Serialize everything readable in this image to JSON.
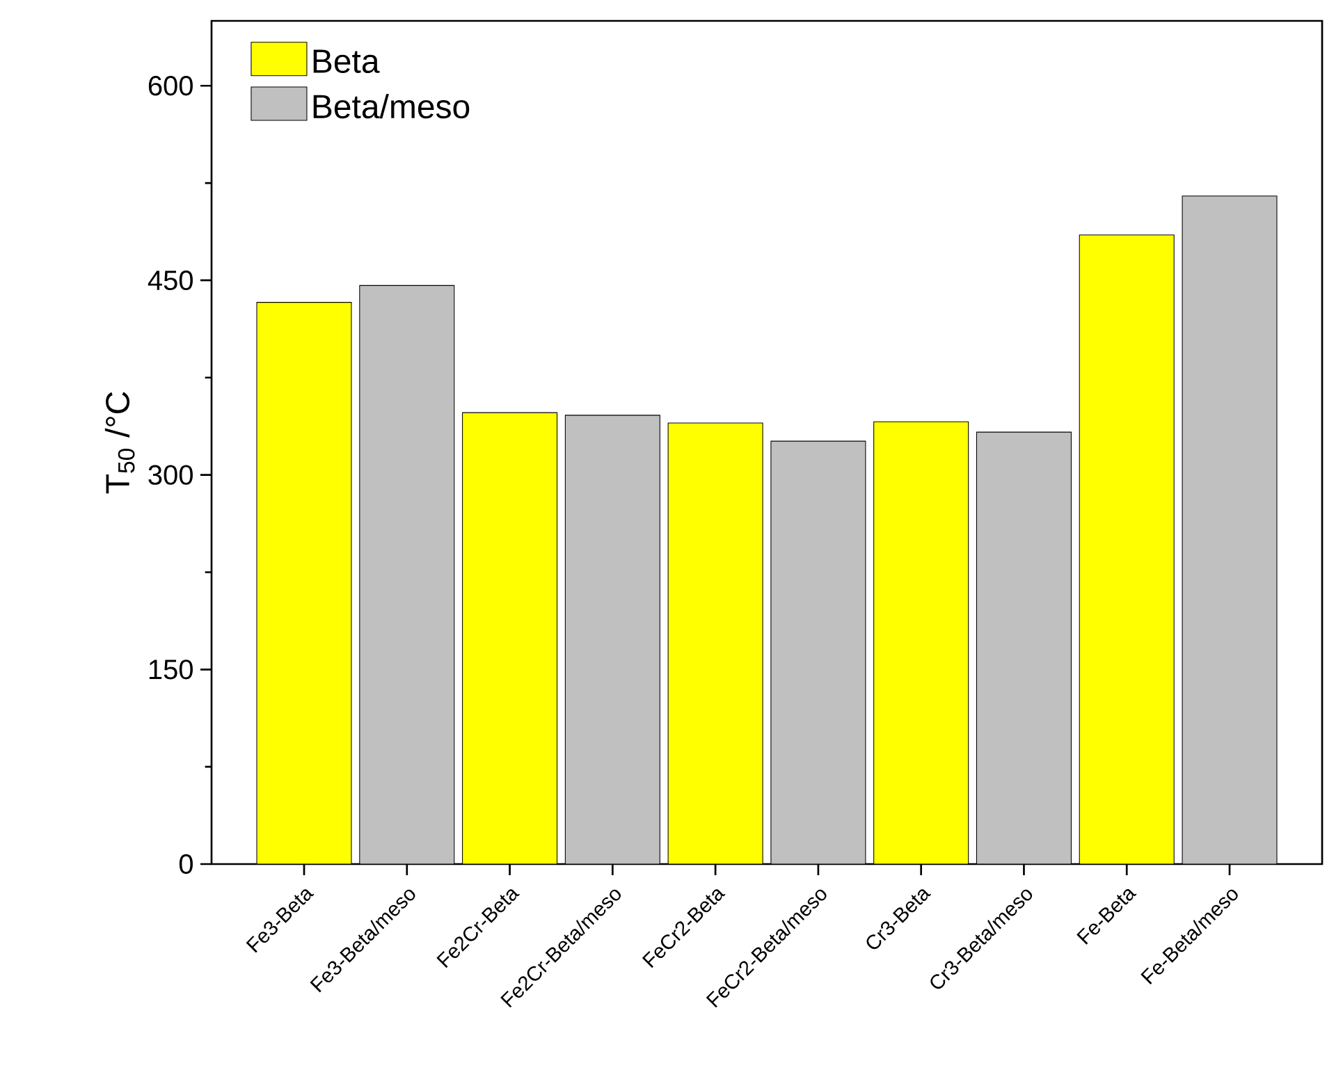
{
  "chart_data": {
    "type": "bar",
    "ylabel": "T$_{50}$ /°C",
    "categories": [
      "Fe3-Beta",
      "Fe3-Beta/meso",
      "Fe2Cr-Beta",
      "Fe2Cr-Beta/meso",
      "FeCr2-Beta",
      "FeCr2-Beta/meso",
      "Cr3-Beta",
      "Cr3-Beta/meso",
      "Fe-Beta",
      "Fe-Beta/meso"
    ],
    "series": [
      {
        "name": "Beta",
        "color": "#ffff00",
        "values": [
          433,
          null,
          348,
          null,
          340,
          null,
          341,
          null,
          485,
          null
        ]
      },
      {
        "name": "Beta/meso",
        "color": "#c0c0c0",
        "values": [
          null,
          446,
          null,
          346,
          null,
          326,
          null,
          333,
          null,
          515
        ]
      }
    ],
    "ylim": [
      0,
      650
    ],
    "yticks": [
      0,
      150,
      300,
      450,
      600
    ],
    "legend": "top left",
    "grid": false
  }
}
